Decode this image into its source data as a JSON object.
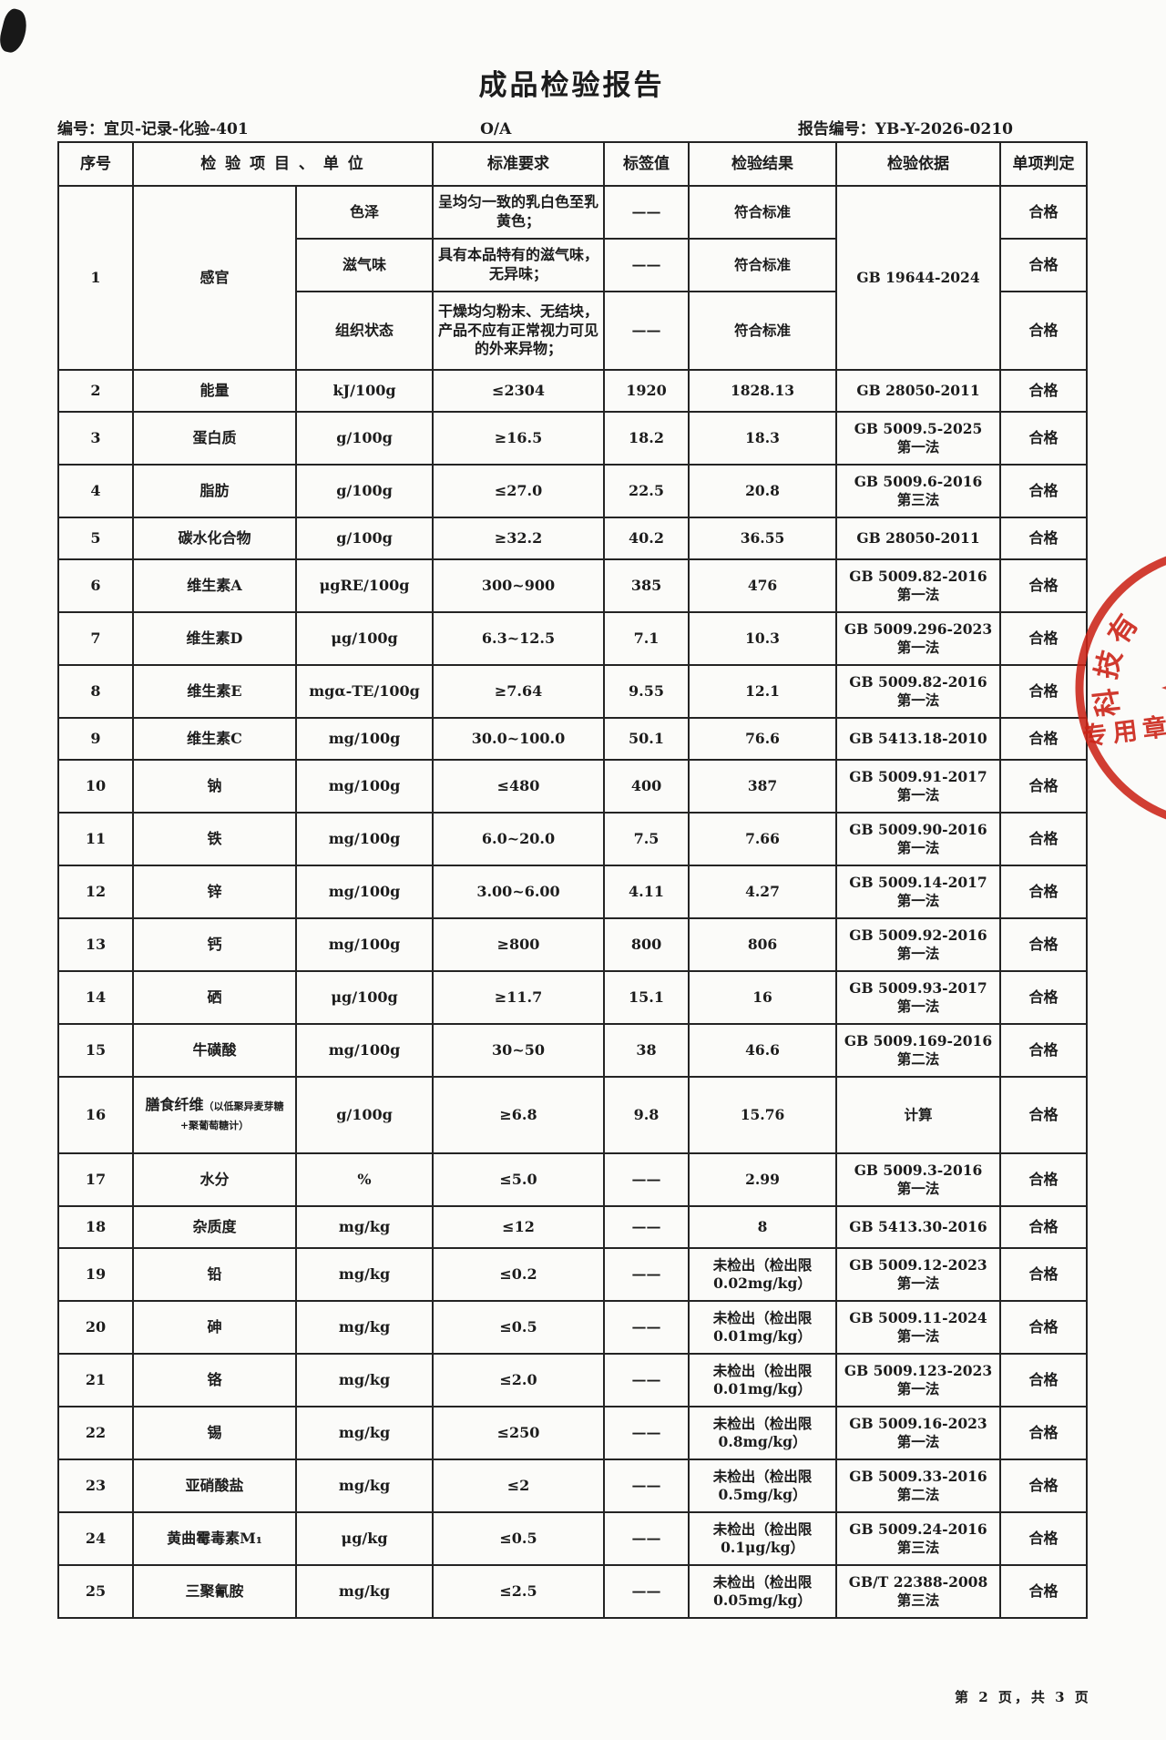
{
  "document": {
    "title": "成品检验报告",
    "doc_no": "编号：宜贝-记录-化验-401",
    "revision": "O/A",
    "report_no": "报告编号：YB-Y-2026-0210",
    "page_footer": "第 2 页，共 3 页"
  },
  "stamp": {
    "arc_text": "科技有",
    "bottom_text": "专用章",
    "color": "#cb2317"
  },
  "table": {
    "headers": [
      "序号",
      "检 验 项 目 、 单 位",
      "标准要求",
      "标签值",
      "检验结果",
      "检验依据",
      "单项判定"
    ],
    "sensory": {
      "no": "1",
      "item": "感官",
      "basis": "GB 19644-2024",
      "subrows": [
        {
          "name": "色泽",
          "standard": "呈均匀一致的乳白色至乳黄色；",
          "label": "——",
          "result": "符合标准",
          "judge": "合格"
        },
        {
          "name": "滋气味",
          "standard": "具有本品特有的滋气味，无异味；",
          "label": "——",
          "result": "符合标准",
          "judge": "合格"
        },
        {
          "name": "组织状态",
          "standard": "干燥均匀粉末、无结块，产品不应有正常视力可见的外来异物；",
          "label": "——",
          "result": "符合标准",
          "judge": "合格"
        }
      ]
    },
    "rows": [
      {
        "no": "2",
        "item": "能量",
        "item_note": "",
        "unit": "kJ/100g",
        "standard": "≤2304",
        "label": "1920",
        "result": "1828.13",
        "result2": "",
        "basis": "GB 28050-2011",
        "basis2": "",
        "judge": "合格"
      },
      {
        "no": "3",
        "item": "蛋白质",
        "item_note": "",
        "unit": "g/100g",
        "standard": "≥16.5",
        "label": "18.2",
        "result": "18.3",
        "result2": "",
        "basis": "GB 5009.5-2025",
        "basis2": "第一法",
        "judge": "合格"
      },
      {
        "no": "4",
        "item": "脂肪",
        "item_note": "",
        "unit": "g/100g",
        "standard": "≤27.0",
        "label": "22.5",
        "result": "20.8",
        "result2": "",
        "basis": "GB 5009.6-2016",
        "basis2": "第三法",
        "judge": "合格"
      },
      {
        "no": "5",
        "item": "碳水化合物",
        "item_note": "",
        "unit": "g/100g",
        "standard": "≥32.2",
        "label": "40.2",
        "result": "36.55",
        "result2": "",
        "basis": "GB 28050-2011",
        "basis2": "",
        "judge": "合格"
      },
      {
        "no": "6",
        "item": "维生素A",
        "item_note": "",
        "unit": "μgRE/100g",
        "standard": "300~900",
        "label": "385",
        "result": "476",
        "result2": "",
        "basis": "GB 5009.82-2016",
        "basis2": "第一法",
        "judge": "合格"
      },
      {
        "no": "7",
        "item": "维生素D",
        "item_note": "",
        "unit": "μg/100g",
        "standard": "6.3~12.5",
        "label": "7.1",
        "result": "10.3",
        "result2": "",
        "basis": "GB 5009.296-2023",
        "basis2": "第一法",
        "judge": "合格"
      },
      {
        "no": "8",
        "item": "维生素E",
        "item_note": "",
        "unit": "mgα-TE/100g",
        "standard": "≥7.64",
        "label": "9.55",
        "result": "12.1",
        "result2": "",
        "basis": "GB 5009.82-2016",
        "basis2": "第一法",
        "judge": "合格"
      },
      {
        "no": "9",
        "item": "维生素C",
        "item_note": "",
        "unit": "mg/100g",
        "standard": "30.0~100.0",
        "label": "50.1",
        "result": "76.6",
        "result2": "",
        "basis": "GB 5413.18-2010",
        "basis2": "",
        "judge": "合格"
      },
      {
        "no": "10",
        "item": "钠",
        "item_note": "",
        "unit": "mg/100g",
        "standard": "≤480",
        "label": "400",
        "result": "387",
        "result2": "",
        "basis": "GB 5009.91-2017",
        "basis2": "第一法",
        "judge": "合格"
      },
      {
        "no": "11",
        "item": "铁",
        "item_note": "",
        "unit": "mg/100g",
        "standard": "6.0~20.0",
        "label": "7.5",
        "result": "7.66",
        "result2": "",
        "basis": "GB 5009.90-2016",
        "basis2": "第一法",
        "judge": "合格"
      },
      {
        "no": "12",
        "item": "锌",
        "item_note": "",
        "unit": "mg/100g",
        "standard": "3.00~6.00",
        "label": "4.11",
        "result": "4.27",
        "result2": "",
        "basis": "GB 5009.14-2017",
        "basis2": "第一法",
        "judge": "合格"
      },
      {
        "no": "13",
        "item": "钙",
        "item_note": "",
        "unit": "mg/100g",
        "standard": "≥800",
        "label": "800",
        "result": "806",
        "result2": "",
        "basis": "GB 5009.92-2016",
        "basis2": "第一法",
        "judge": "合格"
      },
      {
        "no": "14",
        "item": "硒",
        "item_note": "",
        "unit": "μg/100g",
        "standard": "≥11.7",
        "label": "15.1",
        "result": "16",
        "result2": "",
        "basis": "GB 5009.93-2017",
        "basis2": "第一法",
        "judge": "合格"
      },
      {
        "no": "15",
        "item": "牛磺酸",
        "item_note": "",
        "unit": "mg/100g",
        "standard": "30~50",
        "label": "38",
        "result": "46.6",
        "result2": "",
        "basis": "GB 5009.169-2016",
        "basis2": "第二法",
        "judge": "合格"
      },
      {
        "no": "16",
        "item": "膳食纤维",
        "item_note": "（以低聚异麦芽糖+聚葡萄糖计）",
        "unit": "g/100g",
        "standard": "≥6.8",
        "label": "9.8",
        "result": "15.76",
        "result2": "",
        "basis": "计算",
        "basis2": "",
        "judge": "合格"
      },
      {
        "no": "17",
        "item": "水分",
        "item_note": "",
        "unit": "%",
        "standard": "≤5.0",
        "label": "——",
        "result": "2.99",
        "result2": "",
        "basis": "GB 5009.3-2016",
        "basis2": "第一法",
        "judge": "合格"
      },
      {
        "no": "18",
        "item": "杂质度",
        "item_note": "",
        "unit": "mg/kg",
        "standard": "≤12",
        "label": "——",
        "result": "8",
        "result2": "",
        "basis": "GB 5413.30-2016",
        "basis2": "",
        "judge": "合格"
      },
      {
        "no": "19",
        "item": "铅",
        "item_note": "",
        "unit": "mg/kg",
        "standard": "≤0.2",
        "label": "——",
        "result": "未检出（检出限",
        "result2": "0.02mg/kg）",
        "basis": "GB 5009.12-2023",
        "basis2": "第一法",
        "judge": "合格"
      },
      {
        "no": "20",
        "item": "砷",
        "item_note": "",
        "unit": "mg/kg",
        "standard": "≤0.5",
        "label": "——",
        "result": "未检出（检出限",
        "result2": "0.01mg/kg）",
        "basis": "GB 5009.11-2024",
        "basis2": "第一法",
        "judge": "合格"
      },
      {
        "no": "21",
        "item": "铬",
        "item_note": "",
        "unit": "mg/kg",
        "standard": "≤2.0",
        "label": "——",
        "result": "未检出（检出限",
        "result2": "0.01mg/kg）",
        "basis": "GB 5009.123-2023",
        "basis2": "第一法",
        "judge": "合格"
      },
      {
        "no": "22",
        "item": "锡",
        "item_note": "",
        "unit": "mg/kg",
        "standard": "≤250",
        "label": "——",
        "result": "未检出（检出限",
        "result2": "0.8mg/kg）",
        "basis": "GB 5009.16-2023",
        "basis2": "第一法",
        "judge": "合格"
      },
      {
        "no": "23",
        "item": "亚硝酸盐",
        "item_note": "",
        "unit": "mg/kg",
        "standard": "≤2",
        "label": "——",
        "result": "未检出（检出限",
        "result2": "0.5mg/kg）",
        "basis": "GB 5009.33-2016",
        "basis2": "第二法",
        "judge": "合格"
      },
      {
        "no": "24",
        "item": "黄曲霉毒素M₁",
        "item_note": "",
        "unit": "μg/kg",
        "standard": "≤0.5",
        "label": "——",
        "result": "未检出（检出限",
        "result2": "0.1μg/kg）",
        "basis": "GB 5009.24-2016",
        "basis2": "第三法",
        "judge": "合格"
      },
      {
        "no": "25",
        "item": "三聚氰胺",
        "item_note": "",
        "unit": "mg/kg",
        "standard": "≤2.5",
        "label": "——",
        "result": "未检出（检出限",
        "result2": "0.05mg/kg）",
        "basis": "GB/T 22388-2008",
        "basis2": "第三法",
        "judge": "合格"
      }
    ]
  }
}
